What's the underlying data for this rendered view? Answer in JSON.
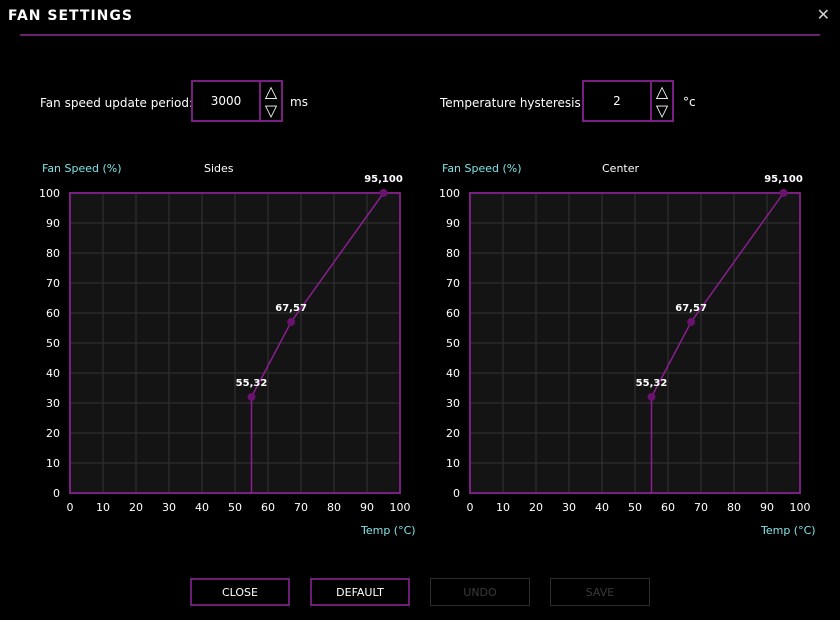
{
  "window": {
    "title": "FAN SETTINGS",
    "close_glyph": "✕"
  },
  "update_period": {
    "label": "Fan speed update period:",
    "value": "3000",
    "unit": "ms"
  },
  "hysteresis": {
    "label": "Temperature hysteresis:",
    "value": "2",
    "unit": "°c"
  },
  "arrows": {
    "up": "△",
    "down": "▽"
  },
  "colors": {
    "accent": "#6b1e72",
    "point": "#6a1270",
    "axis_label": "#7fe3e6",
    "grid": "#333333",
    "plot_bg": "#141414"
  },
  "buttons": {
    "close": "CLOSE",
    "default": "DEFAULT",
    "undo": "UNDO",
    "save": "SAVE"
  },
  "chart_data": [
    {
      "type": "line",
      "title": "Sides",
      "ylabel": "Fan Speed (%)",
      "xlabel": "Temp (°C)",
      "xlim": [
        0,
        100
      ],
      "ylim": [
        0,
        100
      ],
      "xticks": [
        0,
        10,
        20,
        30,
        40,
        50,
        60,
        70,
        80,
        90,
        100
      ],
      "yticks": [
        0,
        10,
        20,
        30,
        40,
        50,
        60,
        70,
        80,
        90,
        100
      ],
      "grid": true,
      "points": [
        {
          "x": 55,
          "y": 32,
          "label": "55,32"
        },
        {
          "x": 67,
          "y": 57,
          "label": "67,57"
        },
        {
          "x": 95,
          "y": 100,
          "label": "95,100"
        }
      ]
    },
    {
      "type": "line",
      "title": "Center",
      "ylabel": "Fan Speed (%)",
      "xlabel": "Temp (°C)",
      "xlim": [
        0,
        100
      ],
      "ylim": [
        0,
        100
      ],
      "xticks": [
        0,
        10,
        20,
        30,
        40,
        50,
        60,
        70,
        80,
        90,
        100
      ],
      "yticks": [
        0,
        10,
        20,
        30,
        40,
        50,
        60,
        70,
        80,
        90,
        100
      ],
      "grid": true,
      "points": [
        {
          "x": 55,
          "y": 32,
          "label": "55,32"
        },
        {
          "x": 67,
          "y": 57,
          "label": "67,57"
        },
        {
          "x": 95,
          "y": 100,
          "label": "95,100"
        }
      ]
    }
  ]
}
